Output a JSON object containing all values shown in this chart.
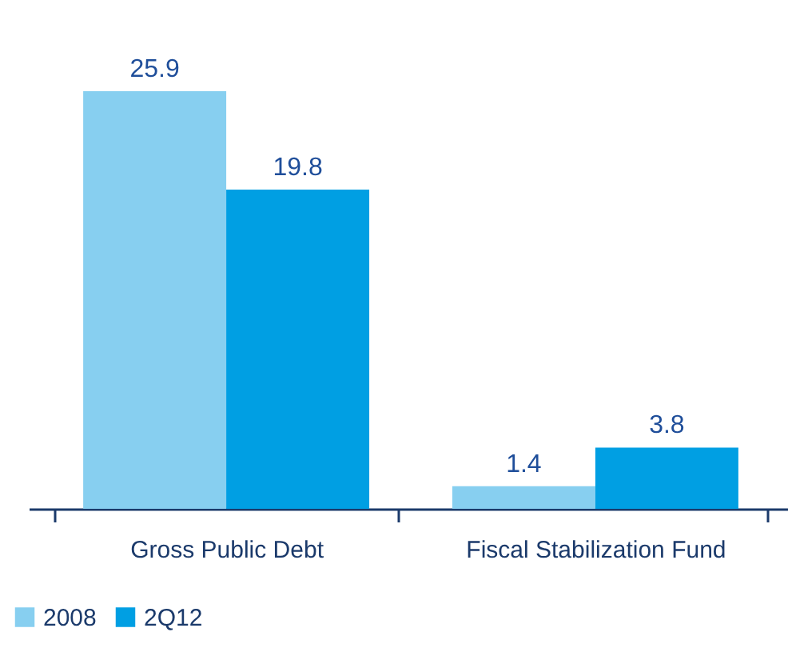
{
  "chart_data": {
    "type": "bar",
    "categories": [
      "Gross Public Debt",
      "Fiscal Stabilization Fund"
    ],
    "series": [
      {
        "name": "2008",
        "color": "#87cff0",
        "values": [
          25.9,
          1.4
        ]
      },
      {
        "name": "2Q12",
        "color": "#009fe3",
        "values": [
          19.8,
          3.8
        ]
      }
    ],
    "data_labels": true,
    "legend": "bottom left",
    "grid": false
  }
}
